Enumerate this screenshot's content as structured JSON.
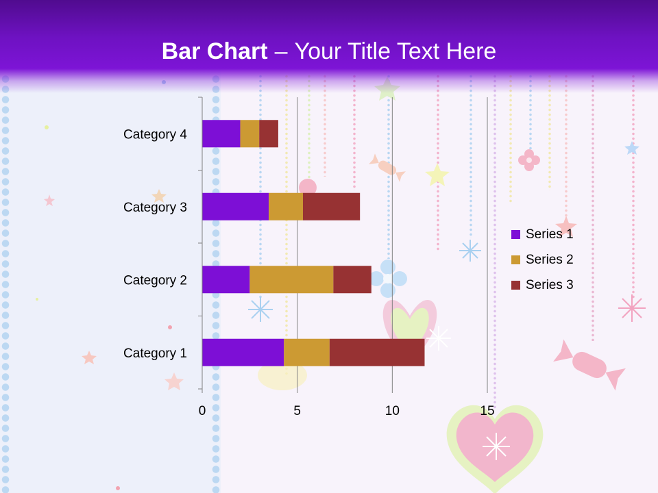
{
  "slide": {
    "title_bold": "Bar Chart",
    "title_separator": "–",
    "title_rest": "Your Title Text Here"
  },
  "colors": {
    "header_top": "#500b8f",
    "header_bottom": "#7d14d6",
    "series_1": "#7d0fd6",
    "series_2": "#cc9a33",
    "series_3": "#973233"
  },
  "chart_data": {
    "type": "bar",
    "orientation": "horizontal",
    "stacked": true,
    "categories": [
      "Category 1",
      "Category 2",
      "Category 3",
      "Category 4"
    ],
    "series": [
      {
        "name": "Series 1",
        "values": [
          4.3,
          2.5,
          3.5,
          2.0
        ],
        "color": "#7d0fd6"
      },
      {
        "name": "Series 2",
        "values": [
          2.4,
          4.4,
          1.8,
          1.0
        ],
        "color": "#cc9a33"
      },
      {
        "name": "Series 3",
        "values": [
          5.0,
          2.0,
          3.0,
          1.0
        ],
        "color": "#973233"
      }
    ],
    "xlim": [
      0,
      15
    ],
    "x_ticks": [
      "0",
      "5",
      "10",
      "15"
    ],
    "grid": true,
    "legend_position": "right"
  }
}
